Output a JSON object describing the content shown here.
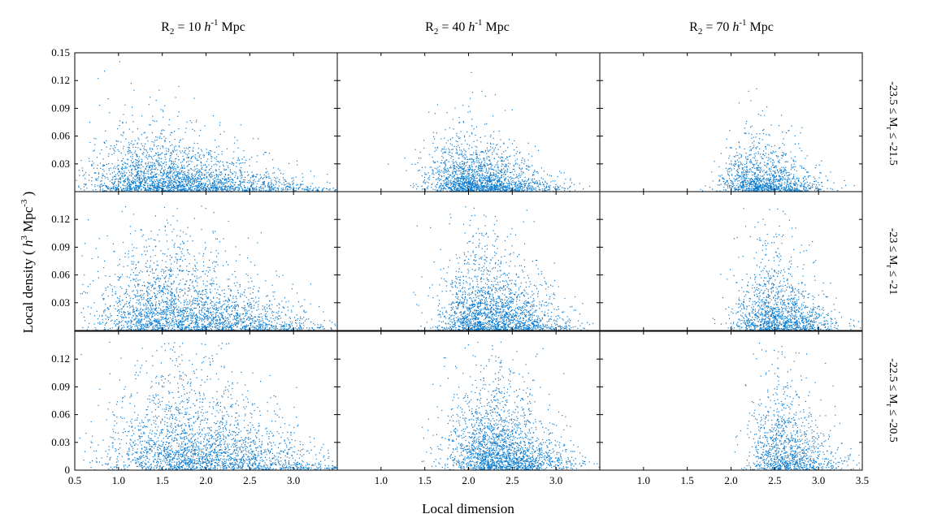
{
  "chart_data": {
    "type": "scatter",
    "layout": {
      "rows": 3,
      "cols": 3
    },
    "marker_color": "#0a7bd0",
    "xlabel": "Local dimension",
    "ylabel_parts": {
      "pre": "Local density ( ",
      "h": "h",
      "h_exp": "3",
      "mid": " Mpc",
      "mpc_exp": "-3",
      "post": " )"
    },
    "column_titles": [
      {
        "pre": "R",
        "sub": "2",
        "mid": " = 10 ",
        "h": "h",
        "exp": "-1",
        "post": " Mpc",
        "R2": 10
      },
      {
        "pre": "R",
        "sub": "2",
        "mid": " = 40 ",
        "h": "h",
        "exp": "-1",
        "post": " Mpc",
        "R2": 40
      },
      {
        "pre": "R",
        "sub": "2",
        "mid": " = 70 ",
        "h": "h",
        "exp": "-1",
        "post": " Mpc",
        "R2": 70
      }
    ],
    "row_labels": [
      {
        "pre": "-23.5 ≤ M",
        "sub": "r",
        "post": " ≤ -21.5"
      },
      {
        "pre": "-23 ≤ M",
        "sub": "r",
        "post": " ≤ -21"
      },
      {
        "pre": "-22.5 ≤ M",
        "sub": "r",
        "post": " ≤ -20.5"
      }
    ],
    "xlim": [
      0.5,
      3.5
    ],
    "ylim": [
      0,
      0.15
    ],
    "x_tick_labels": {
      "col0": [
        "0.5",
        "1.0",
        "1.5",
        "2.0",
        "2.5",
        "3.0"
      ],
      "col1": [
        "1.0",
        "1.5",
        "2.0",
        "2.5",
        "3.0"
      ],
      "col2": [
        "1.0",
        "1.5",
        "2.0",
        "2.5",
        "3.0",
        "3.5"
      ]
    },
    "y_tick_labels": {
      "row0": [
        "0.15",
        "0.12",
        "0.09",
        "0.06",
        "0.03"
      ],
      "row1": [
        "0.12",
        "0.09",
        "0.06",
        "0.03"
      ],
      "row2": [
        "0.12",
        "0.09",
        "0.06",
        "0.03",
        "0"
      ]
    },
    "panel_distributions": [
      [
        {
          "x_peak": 1.35,
          "x_left_sd": 0.35,
          "x_right_sd": 0.85,
          "x_min": 0.5,
          "y_scale": 0.022,
          "density": 1.0,
          "y_max": 0.15
        },
        {
          "x_peak": 2.0,
          "x_left_sd": 0.25,
          "x_right_sd": 0.45,
          "x_min": 1.05,
          "y_scale": 0.02,
          "density": 0.75,
          "y_max": 0.15
        },
        {
          "x_peak": 2.3,
          "x_left_sd": 0.22,
          "x_right_sd": 0.35,
          "x_min": 1.6,
          "y_scale": 0.018,
          "density": 0.5,
          "y_max": 0.15
        }
      ],
      [
        {
          "x_peak": 1.55,
          "x_left_sd": 0.4,
          "x_right_sd": 0.8,
          "x_min": 0.55,
          "y_scale": 0.034,
          "density": 1.0,
          "y_max": 0.14
        },
        {
          "x_peak": 2.15,
          "x_left_sd": 0.25,
          "x_right_sd": 0.45,
          "x_min": 1.1,
          "y_scale": 0.03,
          "density": 0.8,
          "y_max": 0.14
        },
        {
          "x_peak": 2.45,
          "x_left_sd": 0.22,
          "x_right_sd": 0.35,
          "x_min": 1.6,
          "y_scale": 0.026,
          "density": 0.55,
          "y_max": 0.14
        }
      ],
      [
        {
          "x_peak": 1.7,
          "x_left_sd": 0.42,
          "x_right_sd": 0.8,
          "x_min": 0.55,
          "y_scale": 0.04,
          "density": 1.0,
          "y_max": 0.14
        },
        {
          "x_peak": 2.25,
          "x_left_sd": 0.25,
          "x_right_sd": 0.42,
          "x_min": 1.45,
          "y_scale": 0.036,
          "density": 0.85,
          "y_max": 0.14
        },
        {
          "x_peak": 2.55,
          "x_left_sd": 0.18,
          "x_right_sd": 0.33,
          "x_min": 1.95,
          "y_scale": 0.032,
          "density": 0.45,
          "y_max": 0.14
        }
      ]
    ]
  }
}
